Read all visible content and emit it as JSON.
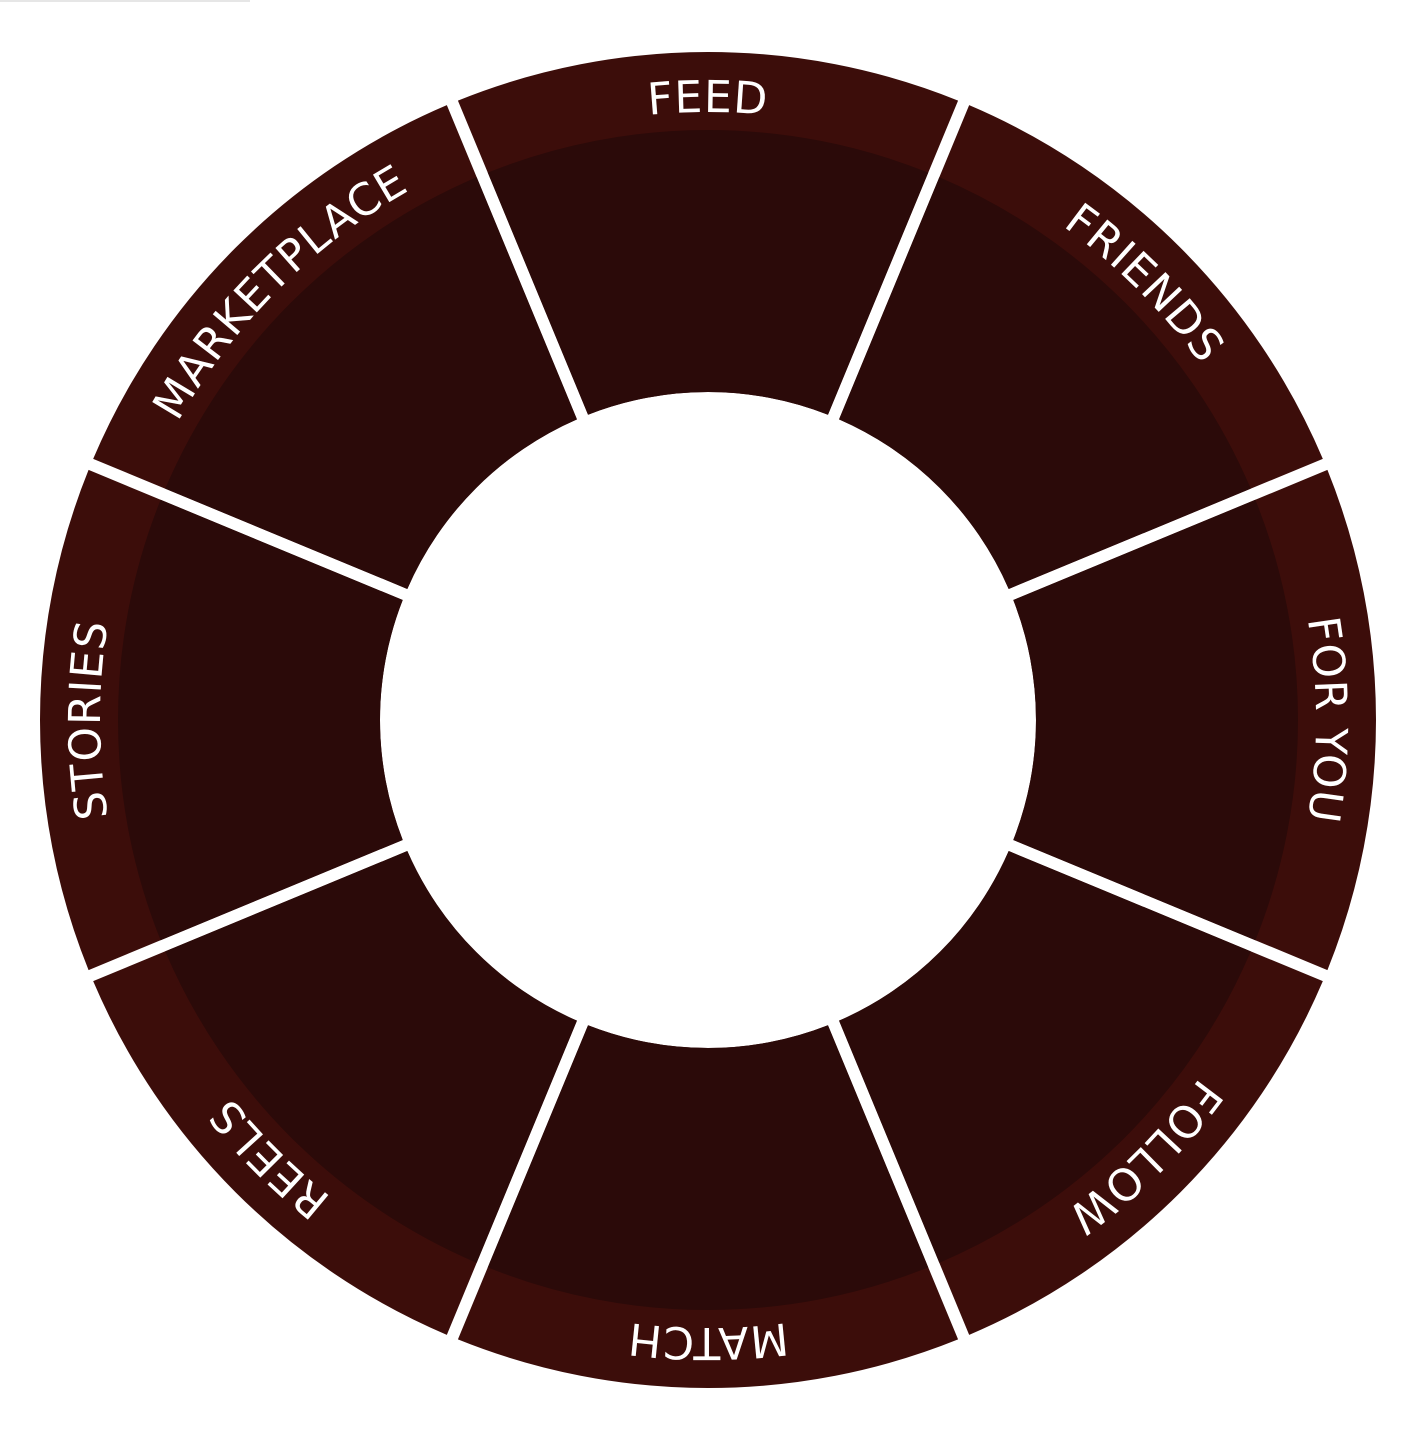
{
  "menu": {
    "items": [
      {
        "id": "feed",
        "label": "FEED"
      },
      {
        "id": "friends",
        "label": "FRIENDS"
      },
      {
        "id": "for-you",
        "label": "FOR YOU"
      },
      {
        "id": "follow",
        "label": "FOLLOW"
      },
      {
        "id": "match",
        "label": "MATCH"
      },
      {
        "id": "reels",
        "label": "REELS"
      },
      {
        "id": "stories",
        "label": "STORIES"
      },
      {
        "id": "marketplace",
        "label": "MARKETPLACE"
      }
    ]
  },
  "colors": {
    "segment_fill": "#2b0a09",
    "segment_rim": "#3c0d0a",
    "separator": "#ffffff",
    "label_text": "#ffffff",
    "background": "#ffffff"
  }
}
